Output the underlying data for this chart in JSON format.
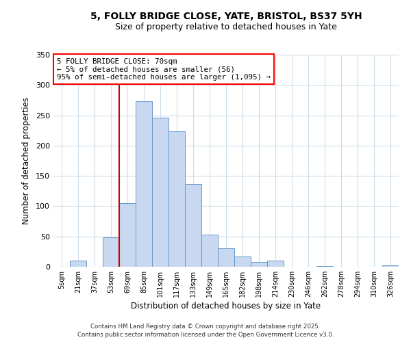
{
  "title": "5, FOLLY BRIDGE CLOSE, YATE, BRISTOL, BS37 5YH",
  "subtitle": "Size of property relative to detached houses in Yate",
  "xlabel": "Distribution of detached houses by size in Yate",
  "ylabel": "Number of detached properties",
  "bar_color": "#c8d8f0",
  "bar_edge_color": "#6699cc",
  "categories": [
    "5sqm",
    "21sqm",
    "37sqm",
    "53sqm",
    "69sqm",
    "85sqm",
    "101sqm",
    "117sqm",
    "133sqm",
    "149sqm",
    "165sqm",
    "182sqm",
    "198sqm",
    "214sqm",
    "230sqm",
    "246sqm",
    "262sqm",
    "278sqm",
    "294sqm",
    "310sqm",
    "326sqm"
  ],
  "values": [
    0,
    10,
    0,
    48,
    105,
    273,
    246,
    223,
    137,
    53,
    30,
    17,
    8,
    10,
    0,
    0,
    1,
    0,
    0,
    0,
    2
  ],
  "ylim": [
    0,
    350
  ],
  "yticks": [
    0,
    50,
    100,
    150,
    200,
    250,
    300,
    350
  ],
  "annotation_box_text": "5 FOLLY BRIDGE CLOSE: 70sqm\n← 5% of detached houses are smaller (56)\n95% of semi-detached houses are larger (1,095) →",
  "vline_x_index": 4,
  "vline_color": "#cc0000",
  "footer1": "Contains HM Land Registry data © Crown copyright and database right 2025.",
  "footer2": "Contains public sector information licensed under the Open Government Licence v3.0.",
  "background_color": "#ffffff",
  "grid_color": "#ccdde8"
}
